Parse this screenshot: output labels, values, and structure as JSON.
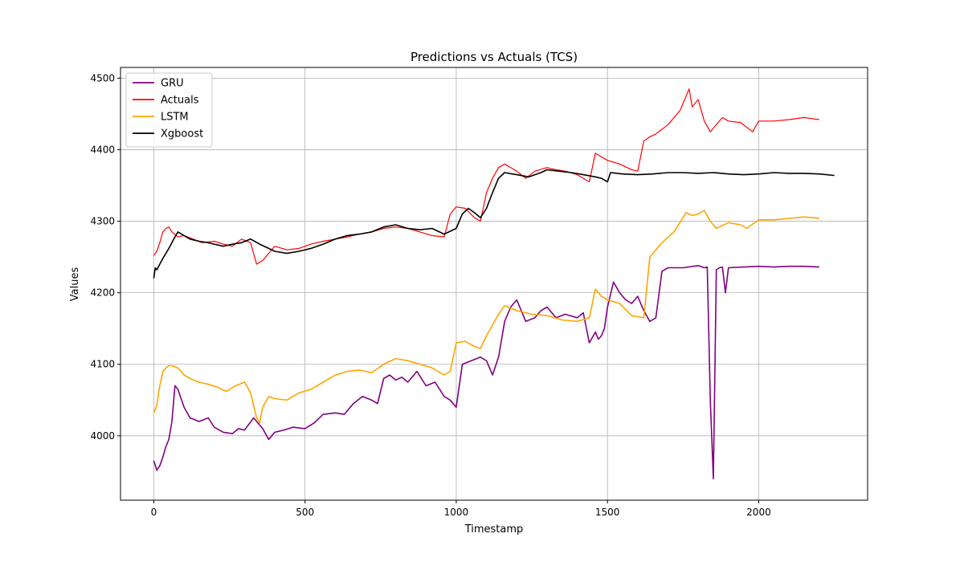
{
  "chart_data": {
    "type": "line",
    "title": "Predictions vs Actuals (TCS)",
    "xlabel": "Timestamp",
    "ylabel": "Values",
    "xlim": [
      -110,
      2360
    ],
    "ylim": [
      3910,
      4515
    ],
    "xticks": [
      0,
      500,
      1000,
      1500,
      2000
    ],
    "yticks": [
      4000,
      4100,
      4200,
      4300,
      4400,
      4500
    ],
    "grid": true,
    "legend_position": "upper-left",
    "series": [
      {
        "name": "GRU",
        "color": "#800080",
        "x": [
          0,
          10,
          20,
          30,
          40,
          50,
          60,
          70,
          80,
          100,
          120,
          150,
          180,
          200,
          230,
          260,
          280,
          300,
          330,
          360,
          380,
          400,
          430,
          460,
          500,
          530,
          560,
          600,
          630,
          660,
          690,
          720,
          740,
          760,
          780,
          800,
          820,
          840,
          870,
          900,
          930,
          960,
          980,
          1000,
          1020,
          1050,
          1080,
          1100,
          1120,
          1140,
          1160,
          1180,
          1200,
          1230,
          1260,
          1280,
          1300,
          1330,
          1360,
          1400,
          1420,
          1440,
          1460,
          1470,
          1480,
          1490,
          1500,
          1520,
          1540,
          1560,
          1580,
          1600,
          1620,
          1640,
          1660,
          1680,
          1700,
          1750,
          1800,
          1820,
          1830,
          1840,
          1850,
          1860,
          1870,
          1880,
          1890,
          1900,
          1950,
          2000,
          2050,
          2100,
          2150,
          2200
        ],
        "y": [
          3965,
          3952,
          3958,
          3970,
          3985,
          3995,
          4020,
          4070,
          4065,
          4040,
          4025,
          4020,
          4025,
          4012,
          4005,
          4003,
          4010,
          4008,
          4025,
          4010,
          3995,
          4005,
          4008,
          4012,
          4010,
          4018,
          4030,
          4032,
          4030,
          4045,
          4055,
          4050,
          4045,
          4080,
          4085,
          4078,
          4082,
          4075,
          4090,
          4070,
          4075,
          4055,
          4050,
          4040,
          4100,
          4105,
          4110,
          4105,
          4085,
          4110,
          4160,
          4180,
          4190,
          4160,
          4165,
          4175,
          4180,
          4165,
          4170,
          4165,
          4172,
          4130,
          4145,
          4135,
          4140,
          4150,
          4180,
          4215,
          4200,
          4190,
          4185,
          4195,
          4175,
          4160,
          4165,
          4230,
          4235,
          4235,
          4238,
          4235,
          4236,
          4050,
          3940,
          4232,
          4235,
          4236,
          4200,
          4235,
          4236,
          4237,
          4236,
          4237,
          4237,
          4236
        ]
      },
      {
        "name": "Actuals",
        "color": "#ff0000",
        "x": [
          0,
          10,
          20,
          30,
          40,
          50,
          60,
          80,
          100,
          130,
          160,
          200,
          230,
          260,
          290,
          320,
          340,
          360,
          400,
          440,
          480,
          520,
          560,
          600,
          640,
          680,
          720,
          760,
          800,
          840,
          880,
          920,
          960,
          980,
          1000,
          1030,
          1060,
          1080,
          1100,
          1120,
          1140,
          1160,
          1200,
          1230,
          1260,
          1300,
          1330,
          1360,
          1400,
          1440,
          1460,
          1480,
          1500,
          1540,
          1580,
          1600,
          1620,
          1640,
          1660,
          1700,
          1740,
          1760,
          1770,
          1780,
          1800,
          1820,
          1840,
          1860,
          1880,
          1900,
          1940,
          1980,
          2000,
          2050,
          2100,
          2150,
          2200
        ],
        "y": [
          4252,
          4258,
          4270,
          4285,
          4290,
          4292,
          4285,
          4278,
          4280,
          4275,
          4270,
          4272,
          4268,
          4265,
          4275,
          4270,
          4240,
          4245,
          4265,
          4260,
          4262,
          4268,
          4272,
          4275,
          4278,
          4282,
          4285,
          4290,
          4292,
          4290,
          4285,
          4280,
          4278,
          4310,
          4320,
          4318,
          4305,
          4300,
          4340,
          4360,
          4375,
          4380,
          4370,
          4360,
          4370,
          4375,
          4372,
          4370,
          4365,
          4355,
          4395,
          4390,
          4385,
          4380,
          4372,
          4370,
          4412,
          4418,
          4422,
          4435,
          4455,
          4475,
          4485,
          4460,
          4470,
          4440,
          4425,
          4435,
          4445,
          4440,
          4438,
          4425,
          4440,
          4440,
          4442,
          4445,
          4442
        ]
      },
      {
        "name": "LSTM",
        "color": "#ffa500",
        "x": [
          0,
          10,
          20,
          30,
          40,
          50,
          60,
          80,
          100,
          120,
          150,
          180,
          210,
          240,
          270,
          300,
          320,
          340,
          350,
          360,
          380,
          400,
          440,
          480,
          520,
          560,
          600,
          640,
          680,
          720,
          760,
          800,
          840,
          880,
          920,
          960,
          980,
          1000,
          1030,
          1060,
          1080,
          1100,
          1140,
          1160,
          1200,
          1250,
          1300,
          1350,
          1400,
          1440,
          1460,
          1480,
          1500,
          1540,
          1580,
          1620,
          1640,
          1680,
          1720,
          1760,
          1780,
          1800,
          1820,
          1840,
          1860,
          1900,
          1940,
          1960,
          2000,
          2050,
          2100,
          2150,
          2200
        ],
        "y": [
          4032,
          4042,
          4070,
          4090,
          4095,
          4098,
          4098,
          4095,
          4085,
          4080,
          4075,
          4072,
          4068,
          4062,
          4070,
          4075,
          4060,
          4025,
          4018,
          4040,
          4055,
          4052,
          4050,
          4060,
          4065,
          4075,
          4085,
          4090,
          4092,
          4088,
          4100,
          4108,
          4105,
          4100,
          4095,
          4085,
          4090,
          4130,
          4132,
          4125,
          4122,
          4140,
          4170,
          4182,
          4175,
          4170,
          4168,
          4162,
          4160,
          4165,
          4205,
          4195,
          4190,
          4185,
          4168,
          4165,
          4250,
          4270,
          4285,
          4312,
          4308,
          4310,
          4315,
          4300,
          4290,
          4298,
          4295,
          4290,
          4302,
          4302,
          4304,
          4306,
          4304
        ]
      },
      {
        "name": "Xgboost",
        "color": "#000000",
        "x": [
          0,
          5,
          10,
          20,
          30,
          40,
          50,
          60,
          70,
          80,
          100,
          120,
          150,
          180,
          200,
          230,
          260,
          290,
          320,
          350,
          380,
          400,
          440,
          480,
          520,
          560,
          600,
          640,
          680,
          720,
          760,
          800,
          840,
          880,
          920,
          960,
          1000,
          1020,
          1040,
          1060,
          1080,
          1100,
          1120,
          1140,
          1160,
          1200,
          1240,
          1280,
          1300,
          1340,
          1380,
          1420,
          1460,
          1480,
          1500,
          1510,
          1550,
          1600,
          1650,
          1700,
          1750,
          1800,
          1850,
          1900,
          1950,
          2000,
          2050,
          2100,
          2150,
          2200,
          2250
        ],
        "y": [
          4220,
          4235,
          4232,
          4240,
          4248,
          4255,
          4262,
          4270,
          4278,
          4285,
          4280,
          4275,
          4272,
          4270,
          4268,
          4265,
          4268,
          4270,
          4275,
          4268,
          4262,
          4258,
          4255,
          4258,
          4262,
          4268,
          4275,
          4280,
          4282,
          4285,
          4292,
          4295,
          4290,
          4288,
          4290,
          4282,
          4290,
          4310,
          4318,
          4312,
          4305,
          4318,
          4340,
          4360,
          4368,
          4365,
          4362,
          4368,
          4372,
          4370,
          4368,
          4365,
          4362,
          4360,
          4355,
          4368,
          4366,
          4365,
          4366,
          4368,
          4368,
          4367,
          4368,
          4366,
          4365,
          4366,
          4368,
          4367,
          4367,
          4366,
          4364
        ]
      }
    ]
  }
}
